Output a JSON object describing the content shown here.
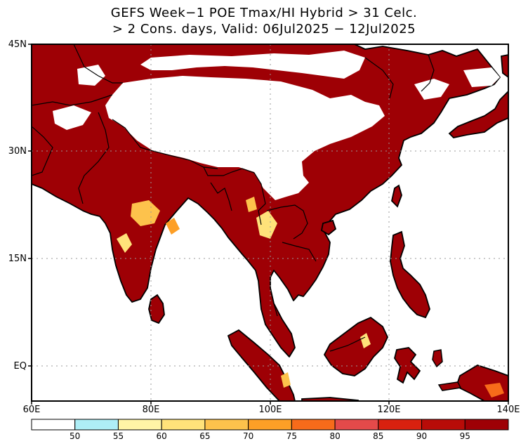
{
  "title": {
    "line1": "GEFS Week−1 POE Tmax/HI Hybrid > 31 Celc.",
    "line2": "> 2 Cons. days, Valid: 06Jul2025 − 12Jul2025"
  },
  "map": {
    "lat_range": [
      -3,
      45
    ],
    "lon_range": [
      60,
      140
    ],
    "lat_labels": [
      {
        "lat": 45,
        "text": "45N"
      },
      {
        "lat": 30,
        "text": "30N"
      },
      {
        "lat": 15,
        "text": "15N"
      },
      {
        "lat": 0,
        "text": "EQ"
      }
    ],
    "lon_labels": [
      {
        "lon": 60,
        "text": "60E"
      },
      {
        "lon": 80,
        "text": "80E"
      },
      {
        "lon": 100,
        "text": "100E"
      },
      {
        "lon": 120,
        "text": "120E"
      },
      {
        "lon": 140,
        "text": "140E"
      }
    ],
    "gridlines": "dotted"
  },
  "colorbar": {
    "colors": [
      "#ffffff",
      "#aeeef6",
      "#fff5a6",
      "#ffe27a",
      "#fdc24c",
      "#fd9f26",
      "#f76b1a",
      "#e44a4a",
      "#d9210f",
      "#b80c08",
      "#9e0005"
    ],
    "labels": [
      "50",
      "55",
      "60",
      "65",
      "70",
      "75",
      "80",
      "85",
      "90",
      "95"
    ]
  }
}
